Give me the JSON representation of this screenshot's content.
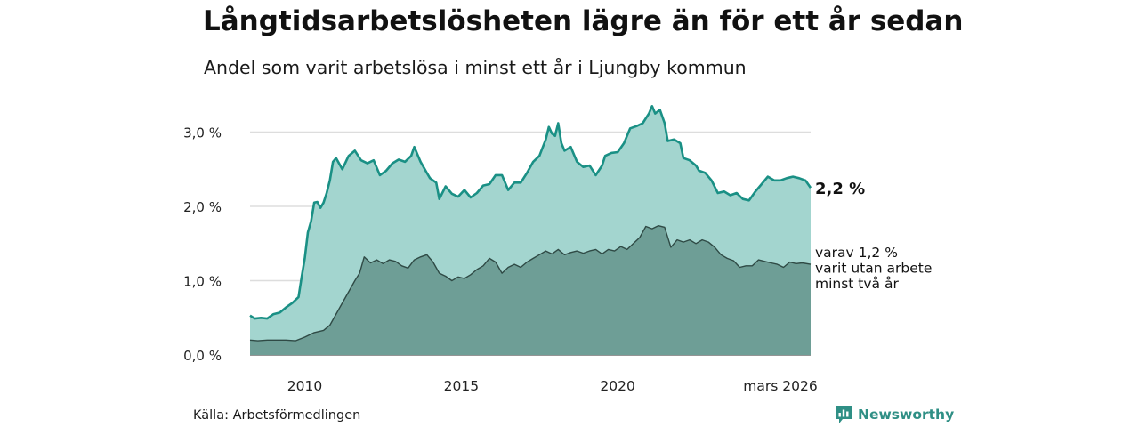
{
  "header": {
    "title": "Långtidsarbetslösheten lägre än för ett år sedan",
    "subtitle": "Andel som varit arbetslösa i minst ett år i Ljungby kommun"
  },
  "footer": {
    "source": "Källa: Arbetsförmedlingen",
    "brand": "Newsworthy"
  },
  "colors": {
    "total_area": "#a3d5cf",
    "total_line": "#1a9085",
    "long_area": "#6e9e96",
    "long_line": "#2f4a45",
    "grid": "#dddddd",
    "brand": "#2f8f85"
  },
  "chart_data": {
    "type": "area",
    "title": "Långtidsarbetslösheten lägre än för ett år sedan",
    "subtitle": "Andel som varit arbetslösa i minst ett år i Ljungby kommun",
    "x_start": 2008.25,
    "x_end": 2026.167,
    "ylim": [
      0,
      3.5
    ],
    "yticks": [
      {
        "value": 0,
        "label": "0,0 %"
      },
      {
        "value": 1,
        "label": "1,0 %"
      },
      {
        "value": 2,
        "label": "2,0 %"
      },
      {
        "value": 3,
        "label": "3,0 %"
      }
    ],
    "xticks": [
      {
        "value": 2010,
        "label": "2010"
      },
      {
        "value": 2015,
        "label": "2015"
      },
      {
        "value": 2020,
        "label": "2020"
      },
      {
        "value": 2025.2,
        "label": "mars 2026"
      }
    ],
    "series": [
      {
        "name": "total",
        "label": "2,2 %",
        "points": [
          [
            2008.25,
            0.53
          ],
          [
            2008.4,
            0.49
          ],
          [
            2008.6,
            0.5
          ],
          [
            2008.8,
            0.49
          ],
          [
            2009.0,
            0.55
          ],
          [
            2009.2,
            0.57
          ],
          [
            2009.4,
            0.64
          ],
          [
            2009.6,
            0.7
          ],
          [
            2009.8,
            0.78
          ],
          [
            2009.9,
            1.05
          ],
          [
            2010.0,
            1.3
          ],
          [
            2010.1,
            1.65
          ],
          [
            2010.2,
            1.8
          ],
          [
            2010.3,
            2.05
          ],
          [
            2010.4,
            2.06
          ],
          [
            2010.5,
            1.98
          ],
          [
            2010.6,
            2.05
          ],
          [
            2010.7,
            2.18
          ],
          [
            2010.8,
            2.35
          ],
          [
            2010.9,
            2.6
          ],
          [
            2011.0,
            2.65
          ],
          [
            2011.2,
            2.5
          ],
          [
            2011.4,
            2.68
          ],
          [
            2011.6,
            2.75
          ],
          [
            2011.8,
            2.62
          ],
          [
            2012.0,
            2.58
          ],
          [
            2012.2,
            2.62
          ],
          [
            2012.4,
            2.42
          ],
          [
            2012.6,
            2.48
          ],
          [
            2012.8,
            2.58
          ],
          [
            2013.0,
            2.63
          ],
          [
            2013.2,
            2.6
          ],
          [
            2013.4,
            2.68
          ],
          [
            2013.5,
            2.8
          ],
          [
            2013.7,
            2.6
          ],
          [
            2013.9,
            2.45
          ],
          [
            2014.0,
            2.38
          ],
          [
            2014.2,
            2.32
          ],
          [
            2014.3,
            2.1
          ],
          [
            2014.5,
            2.27
          ],
          [
            2014.7,
            2.17
          ],
          [
            2014.9,
            2.13
          ],
          [
            2015.1,
            2.22
          ],
          [
            2015.3,
            2.12
          ],
          [
            2015.5,
            2.18
          ],
          [
            2015.7,
            2.28
          ],
          [
            2015.9,
            2.3
          ],
          [
            2016.1,
            2.42
          ],
          [
            2016.3,
            2.42
          ],
          [
            2016.5,
            2.22
          ],
          [
            2016.7,
            2.32
          ],
          [
            2016.9,
            2.32
          ],
          [
            2017.1,
            2.45
          ],
          [
            2017.3,
            2.6
          ],
          [
            2017.5,
            2.68
          ],
          [
            2017.7,
            2.9
          ],
          [
            2017.8,
            3.07
          ],
          [
            2017.9,
            2.98
          ],
          [
            2018.0,
            2.95
          ],
          [
            2018.1,
            3.12
          ],
          [
            2018.2,
            2.85
          ],
          [
            2018.3,
            2.75
          ],
          [
            2018.5,
            2.8
          ],
          [
            2018.7,
            2.6
          ],
          [
            2018.9,
            2.53
          ],
          [
            2019.1,
            2.55
          ],
          [
            2019.3,
            2.42
          ],
          [
            2019.5,
            2.55
          ],
          [
            2019.6,
            2.68
          ],
          [
            2019.8,
            2.72
          ],
          [
            2020.0,
            2.73
          ],
          [
            2020.2,
            2.85
          ],
          [
            2020.4,
            3.05
          ],
          [
            2020.6,
            3.08
          ],
          [
            2020.8,
            3.12
          ],
          [
            2021.0,
            3.25
          ],
          [
            2021.1,
            3.35
          ],
          [
            2021.2,
            3.25
          ],
          [
            2021.35,
            3.3
          ],
          [
            2021.5,
            3.12
          ],
          [
            2021.6,
            2.88
          ],
          [
            2021.8,
            2.9
          ],
          [
            2022.0,
            2.85
          ],
          [
            2022.1,
            2.65
          ],
          [
            2022.3,
            2.62
          ],
          [
            2022.5,
            2.55
          ],
          [
            2022.6,
            2.48
          ],
          [
            2022.8,
            2.45
          ],
          [
            2023.0,
            2.35
          ],
          [
            2023.2,
            2.18
          ],
          [
            2023.4,
            2.2
          ],
          [
            2023.6,
            2.15
          ],
          [
            2023.8,
            2.18
          ],
          [
            2024.0,
            2.1
          ],
          [
            2024.2,
            2.08
          ],
          [
            2024.4,
            2.2
          ],
          [
            2024.6,
            2.3
          ],
          [
            2024.8,
            2.4
          ],
          [
            2025.0,
            2.35
          ],
          [
            2025.2,
            2.35
          ],
          [
            2025.4,
            2.38
          ],
          [
            2025.6,
            2.4
          ],
          [
            2025.8,
            2.38
          ],
          [
            2026.0,
            2.35
          ],
          [
            2026.167,
            2.25
          ]
        ]
      },
      {
        "name": "minst två år",
        "label": "varav 1,2 %",
        "label_lines": [
          "varav 1,2 %",
          "varit utan arbete",
          "minst två år"
        ],
        "points": [
          [
            2008.25,
            0.2
          ],
          [
            2008.5,
            0.19
          ],
          [
            2008.8,
            0.2
          ],
          [
            2009.1,
            0.2
          ],
          [
            2009.4,
            0.2
          ],
          [
            2009.7,
            0.19
          ],
          [
            2010.0,
            0.24
          ],
          [
            2010.3,
            0.3
          ],
          [
            2010.6,
            0.33
          ],
          [
            2010.8,
            0.4
          ],
          [
            2011.0,
            0.55
          ],
          [
            2011.2,
            0.7
          ],
          [
            2011.4,
            0.85
          ],
          [
            2011.6,
            1.0
          ],
          [
            2011.75,
            1.1
          ],
          [
            2011.9,
            1.32
          ],
          [
            2012.1,
            1.24
          ],
          [
            2012.3,
            1.28
          ],
          [
            2012.5,
            1.23
          ],
          [
            2012.7,
            1.28
          ],
          [
            2012.9,
            1.26
          ],
          [
            2013.1,
            1.2
          ],
          [
            2013.3,
            1.17
          ],
          [
            2013.5,
            1.28
          ],
          [
            2013.7,
            1.32
          ],
          [
            2013.9,
            1.35
          ],
          [
            2014.1,
            1.25
          ],
          [
            2014.3,
            1.1
          ],
          [
            2014.5,
            1.06
          ],
          [
            2014.7,
            1.0
          ],
          [
            2014.9,
            1.05
          ],
          [
            2015.1,
            1.03
          ],
          [
            2015.3,
            1.08
          ],
          [
            2015.5,
            1.15
          ],
          [
            2015.7,
            1.2
          ],
          [
            2015.9,
            1.3
          ],
          [
            2016.1,
            1.25
          ],
          [
            2016.3,
            1.1
          ],
          [
            2016.5,
            1.18
          ],
          [
            2016.7,
            1.22
          ],
          [
            2016.9,
            1.18
          ],
          [
            2017.1,
            1.25
          ],
          [
            2017.3,
            1.3
          ],
          [
            2017.5,
            1.35
          ],
          [
            2017.7,
            1.4
          ],
          [
            2017.9,
            1.36
          ],
          [
            2018.1,
            1.42
          ],
          [
            2018.3,
            1.35
          ],
          [
            2018.5,
            1.38
          ],
          [
            2018.7,
            1.4
          ],
          [
            2018.9,
            1.37
          ],
          [
            2019.1,
            1.4
          ],
          [
            2019.3,
            1.42
          ],
          [
            2019.5,
            1.36
          ],
          [
            2019.7,
            1.42
          ],
          [
            2019.9,
            1.4
          ],
          [
            2020.1,
            1.46
          ],
          [
            2020.3,
            1.42
          ],
          [
            2020.5,
            1.5
          ],
          [
            2020.7,
            1.58
          ],
          [
            2020.9,
            1.73
          ],
          [
            2021.1,
            1.7
          ],
          [
            2021.3,
            1.74
          ],
          [
            2021.5,
            1.72
          ],
          [
            2021.7,
            1.45
          ],
          [
            2021.9,
            1.55
          ],
          [
            2022.1,
            1.52
          ],
          [
            2022.3,
            1.55
          ],
          [
            2022.5,
            1.5
          ],
          [
            2022.7,
            1.55
          ],
          [
            2022.9,
            1.52
          ],
          [
            2023.1,
            1.45
          ],
          [
            2023.3,
            1.35
          ],
          [
            2023.5,
            1.3
          ],
          [
            2023.7,
            1.27
          ],
          [
            2023.9,
            1.18
          ],
          [
            2024.1,
            1.2
          ],
          [
            2024.3,
            1.2
          ],
          [
            2024.5,
            1.28
          ],
          [
            2024.7,
            1.26
          ],
          [
            2024.9,
            1.24
          ],
          [
            2025.1,
            1.22
          ],
          [
            2025.3,
            1.18
          ],
          [
            2025.5,
            1.25
          ],
          [
            2025.7,
            1.23
          ],
          [
            2025.9,
            1.24
          ],
          [
            2026.167,
            1.22
          ]
        ]
      }
    ]
  }
}
